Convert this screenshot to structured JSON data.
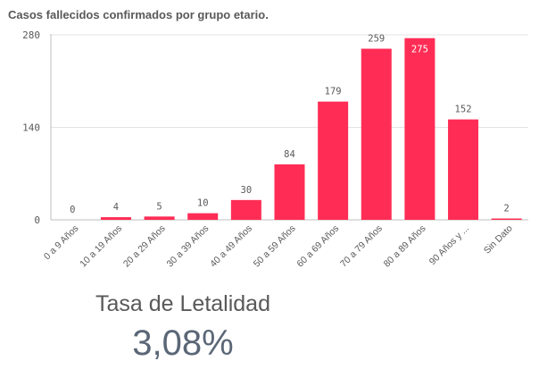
{
  "chart_data": {
    "type": "bar",
    "title": "Casos fallecidos confirmados por grupo etario.",
    "categories": [
      "0 a 9 Años",
      "10 a 19 Años",
      "20 a 29 Años",
      "30 a 39 Años",
      "40 a 49 Años",
      "50 a 59 Años",
      "60 a 69 Años",
      "70 a 79 Años",
      "80 a 89 Años",
      "90 Años y ...",
      "Sin Dato"
    ],
    "values": [
      0,
      4,
      5,
      10,
      30,
      84,
      179,
      259,
      275,
      152,
      2
    ],
    "data_labels": [
      "0",
      "4",
      "5",
      "10",
      "30",
      "84",
      "179",
      "259",
      "275",
      "152",
      "2"
    ],
    "ylim": [
      0,
      280
    ],
    "yticks": [
      0,
      140,
      280
    ],
    "ytick_labels": [
      "0",
      "140",
      "280"
    ],
    "xlabel": "",
    "ylabel": "",
    "grid": true,
    "bar_color": "#ff2d55"
  },
  "kpi": {
    "label": "Tasa de Letalidad",
    "value": "3,08%"
  }
}
